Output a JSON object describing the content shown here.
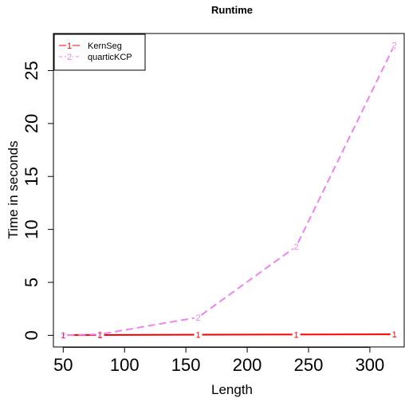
{
  "chart_data": {
    "type": "line",
    "title": "Runtime",
    "xlabel": "Length",
    "ylabel": "Time in seconds",
    "x": [
      50,
      80,
      160,
      240,
      320
    ],
    "xlim": [
      42,
      328
    ],
    "ylim": [
      -1.1,
      28.5
    ],
    "xticks": [
      50,
      100,
      150,
      200,
      250,
      300
    ],
    "yticks": [
      0,
      5,
      10,
      15,
      20,
      25
    ],
    "series": [
      {
        "name": "KernSeg",
        "symbol": "1",
        "color": "#ff0000",
        "dash": "solid",
        "values": [
          0.02,
          0.03,
          0.06,
          0.08,
          0.1
        ]
      },
      {
        "name": "quarticKCP",
        "symbol": "2",
        "color": "#ee82ee",
        "dash": "dashed",
        "values": [
          0.01,
          0.1,
          1.7,
          8.4,
          27.4
        ]
      }
    ],
    "legend_position": "top-left",
    "grid": false
  }
}
